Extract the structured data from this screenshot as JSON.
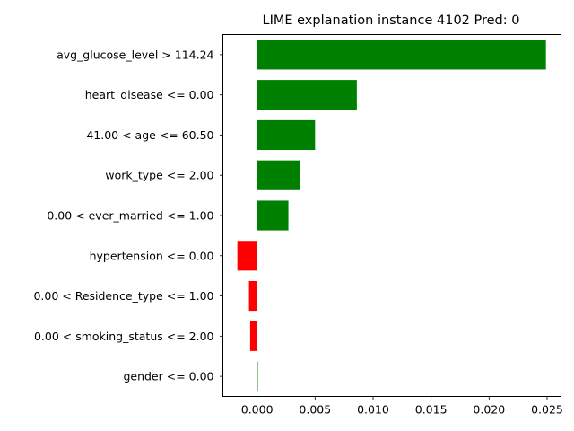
{
  "chart_data": {
    "type": "bar",
    "orientation": "horizontal",
    "title": "LIME explanation instance 4102 Pred: 0",
    "xlabel": "",
    "ylabel": "",
    "categories": [
      "avg_glucose_level > 114.24",
      "heart_disease <= 0.00",
      "41.00 < age <= 60.50",
      "work_type <= 2.00",
      "0.00 < ever_married <= 1.00",
      "hypertension <= 0.00",
      "0.00 < Residence_type <= 1.00",
      "0.00 < smoking_status <= 2.00",
      "gender <= 0.00"
    ],
    "values": [
      0.0249,
      0.0086,
      0.005,
      0.0037,
      0.0027,
      -0.0017,
      -0.0007,
      -0.0006,
      5e-05
    ],
    "xticks": [
      "0.000",
      "0.005",
      "0.010",
      "0.015",
      "0.020",
      "0.025"
    ],
    "xtick_values": [
      0,
      0.005,
      0.01,
      0.015,
      0.02,
      0.025
    ],
    "xlim": [
      -0.00295,
      0.0262
    ],
    "grid": false,
    "colors": {
      "positive": "#008000",
      "negative": "#ff0000"
    }
  }
}
